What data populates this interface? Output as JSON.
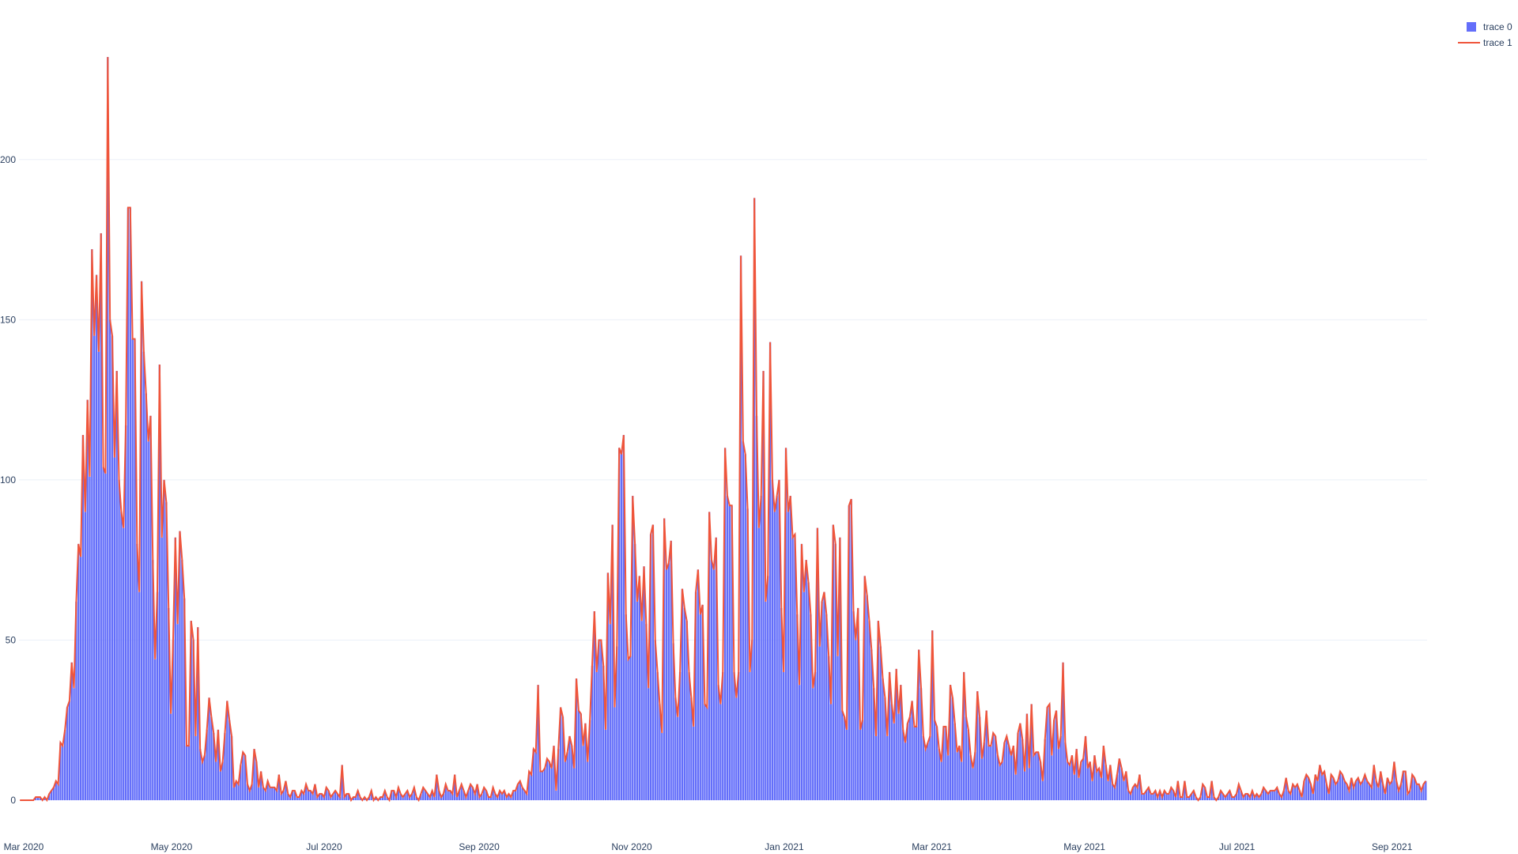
{
  "chart_data": {
    "type": "bar",
    "title": "",
    "xlabel": "",
    "ylabel": "",
    "x_start": "2020-03-01",
    "x_end": "2021-09-15",
    "ylim": [
      0,
      235
    ],
    "grid": true,
    "legend_placement": "top-right",
    "x_ticks": [
      {
        "date": "2020-03-01",
        "label": "Mar 2020"
      },
      {
        "date": "2020-05-01",
        "label": "May 2020"
      },
      {
        "date": "2020-07-01",
        "label": "Jul 2020"
      },
      {
        "date": "2020-09-01",
        "label": "Sep 2020"
      },
      {
        "date": "2020-11-01",
        "label": "Nov 2020"
      },
      {
        "date": "2021-01-01",
        "label": "Jan 2021"
      },
      {
        "date": "2021-03-01",
        "label": "Mar 2021"
      },
      {
        "date": "2021-05-01",
        "label": "May 2021"
      },
      {
        "date": "2021-07-01",
        "label": "Jul 2021"
      },
      {
        "date": "2021-09-01",
        "label": "Sep 2021"
      }
    ],
    "y_ticks": [
      0,
      50,
      100,
      150,
      200
    ],
    "series": [
      {
        "name": "trace 0",
        "kind": "bar",
        "color": "#636efa"
      },
      {
        "name": "trace 1",
        "kind": "line",
        "color": "#ef553b"
      }
    ],
    "values": [
      0,
      0,
      0,
      0,
      0,
      0,
      0,
      1,
      1,
      1,
      0,
      1,
      0,
      2,
      3,
      4,
      6,
      5,
      18,
      17,
      22,
      29,
      31,
      43,
      35,
      62,
      80,
      76,
      114,
      90,
      125,
      101,
      172,
      145,
      164,
      140,
      177,
      104,
      102,
      232,
      150,
      145,
      107,
      134,
      100,
      90,
      85,
      117,
      185,
      185,
      144,
      144,
      80,
      65,
      162,
      140,
      127,
      112,
      120,
      75,
      44,
      65,
      136,
      82,
      100,
      93,
      60,
      27,
      50,
      82,
      55,
      84,
      75,
      63,
      17,
      17,
      56,
      50,
      20,
      54,
      16,
      12,
      14,
      22,
      32,
      26,
      21,
      12,
      22,
      9,
      12,
      21,
      31,
      25,
      20,
      4,
      6,
      5,
      11,
      15,
      14,
      5,
      3,
      5,
      16,
      12,
      4,
      9,
      4,
      3,
      6,
      4,
      4,
      4,
      3,
      8,
      2,
      3,
      6,
      2,
      1,
      3,
      3,
      1,
      1,
      3,
      2,
      5,
      3,
      3,
      2,
      5,
      1,
      2,
      2,
      1,
      4,
      3,
      1,
      2,
      3,
      2,
      1,
      11,
      1,
      2,
      2,
      0,
      1,
      1,
      3,
      1,
      0,
      1,
      0,
      1,
      3,
      0,
      1,
      0,
      1,
      1,
      3,
      1,
      0,
      3,
      3,
      1,
      4,
      2,
      1,
      2,
      3,
      1,
      2,
      4,
      1,
      0,
      2,
      4,
      3,
      2,
      1,
      3,
      1,
      8,
      3,
      1,
      2,
      5,
      3,
      3,
      2,
      8,
      1,
      3,
      5,
      3,
      1,
      3,
      5,
      4,
      2,
      5,
      1,
      2,
      4,
      3,
      1,
      1,
      4,
      2,
      1,
      3,
      2,
      3,
      1,
      2,
      1,
      3,
      3,
      5,
      6,
      4,
      3,
      2,
      9,
      8,
      16,
      15,
      36,
      9,
      9,
      10,
      13,
      12,
      10,
      17,
      3,
      16,
      29,
      26,
      12,
      15,
      20,
      17,
      10,
      38,
      28,
      27,
      17,
      24,
      12,
      25,
      42,
      59,
      40,
      50,
      50,
      42,
      22,
      71,
      55,
      86,
      29,
      48,
      110,
      108,
      114,
      58,
      44,
      45,
      95,
      80,
      62,
      70,
      56,
      73,
      55,
      35,
      83,
      86,
      50,
      40,
      30,
      21,
      88,
      72,
      74,
      81,
      49,
      32,
      26,
      40,
      66,
      60,
      56,
      40,
      32,
      23,
      65,
      72,
      58,
      61,
      30,
      29,
      90,
      75,
      72,
      82,
      36,
      30,
      40,
      110,
      95,
      92,
      92,
      40,
      32,
      40,
      170,
      112,
      108,
      91,
      40,
      50,
      188,
      120,
      85,
      95,
      134,
      62,
      70,
      143,
      100,
      90,
      95,
      100,
      60,
      40,
      110,
      90,
      95,
      82,
      83,
      58,
      36,
      80,
      65,
      75,
      68,
      58,
      35,
      40,
      85,
      48,
      62,
      65,
      58,
      45,
      30,
      86,
      80,
      45,
      82,
      28,
      26,
      22,
      92,
      94,
      59,
      50,
      60,
      22,
      25,
      70,
      64,
      56,
      47,
      35,
      20,
      56,
      48,
      38,
      32,
      20,
      40,
      30,
      24,
      41,
      27,
      36,
      22,
      18,
      24,
      26,
      31,
      23,
      23,
      47,
      35,
      20,
      16,
      18,
      20,
      53,
      25,
      23,
      16,
      12,
      23,
      23,
      14,
      36,
      32,
      24,
      15,
      17,
      12,
      40,
      26,
      22,
      14,
      10,
      15,
      34,
      26,
      13,
      18,
      28,
      17,
      17,
      21,
      20,
      14,
      11,
      12,
      18,
      20,
      17,
      14,
      17,
      8,
      21,
      24,
      19,
      9,
      27,
      10,
      30,
      14,
      15,
      15,
      12,
      6,
      19,
      29,
      30,
      14,
      25,
      28,
      16,
      20,
      43,
      18,
      12,
      11,
      14,
      8,
      16,
      7,
      12,
      13,
      20,
      10,
      12,
      6,
      14,
      9,
      10,
      7,
      17,
      11,
      6,
      11,
      5,
      4,
      8,
      13,
      10,
      6,
      9,
      3,
      2,
      4,
      5,
      4,
      8,
      2,
      2,
      3,
      4,
      2,
      2,
      3,
      1,
      3,
      1,
      3,
      2,
      2,
      4,
      3,
      1,
      6,
      1,
      1,
      6,
      1,
      1,
      2,
      3,
      1,
      0,
      1,
      5,
      4,
      1,
      1,
      6,
      1,
      0,
      1,
      3,
      2,
      1,
      2,
      3,
      1,
      1,
      2,
      5,
      3,
      1,
      2,
      2,
      1,
      3,
      1,
      2,
      1,
      2,
      4,
      3,
      2,
      3,
      3,
      3,
      4,
      2,
      1,
      3,
      7,
      3,
      2,
      5,
      4,
      5,
      3,
      1,
      6,
      8,
      7,
      5,
      2,
      8,
      6,
      11,
      8,
      9,
      5,
      2,
      8,
      7,
      5,
      6,
      9,
      8,
      6,
      5,
      3,
      7,
      4,
      6,
      7,
      5,
      6,
      8,
      6,
      5,
      4,
      11,
      6,
      4,
      9,
      5,
      2,
      7,
      5,
      6,
      12,
      6,
      3,
      5,
      9,
      9,
      2,
      3,
      8,
      7,
      5,
      5,
      3,
      5,
      6
    ]
  },
  "legend": {
    "items": [
      {
        "label": "trace 0",
        "color": "#636efa"
      },
      {
        "label": "trace 1",
        "color": "#ef553b"
      }
    ]
  }
}
